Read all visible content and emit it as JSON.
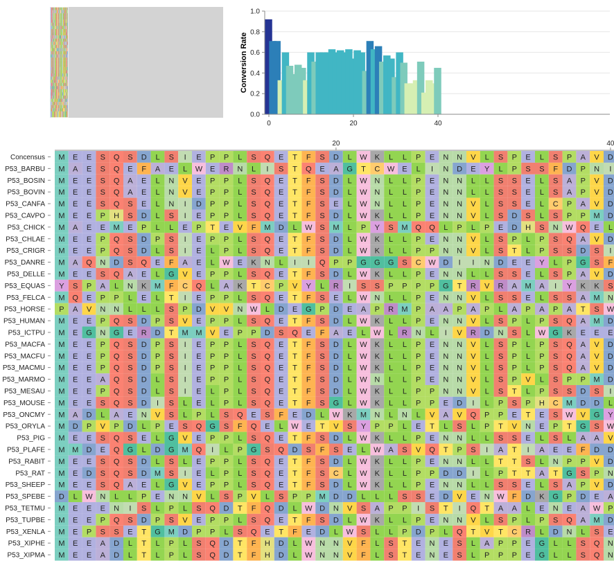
{
  "colors": {
    "M": "#7ccfc0",
    "A": "#bcb0d8",
    "E": "#b1b1e0",
    "D": "#86a5cf",
    "Q": "#fb8272",
    "S": "#f18070",
    "L": "#93d551",
    "P": "#b3dd63",
    "V": "#fed649",
    "I": "#c2dcb2",
    "F": "#feb451",
    "T": "#ffe565",
    "W": "#f7bfdd",
    "K": "#a8a8a8",
    "N": "#b8dba8",
    "G": "#50bf9f",
    "R": "#bf8cc8",
    "C": "#ffcc6d",
    "Y": "#dba0e0",
    "H": "#e3e080",
    "bar_scale": [
      "#d6efb3",
      "#7ecbbb",
      "#41b6c4",
      "#2c7fb8",
      "#253494"
    ],
    "overview_bg": "#d3d3d3"
  },
  "chart_data": {
    "type": "bar",
    "ylabel": "Conversion Rate",
    "xlabel": "",
    "ylim": [
      0,
      1.0
    ],
    "yticks": [
      "0.0",
      "0.2",
      "0.4",
      "0.6",
      "0.8",
      "1.0"
    ],
    "xticks": [
      "0",
      "20",
      "40"
    ],
    "x": [
      0,
      1,
      2,
      3,
      4,
      5,
      6,
      7,
      8,
      9,
      10,
      11,
      12,
      13,
      14,
      15,
      16,
      17,
      18,
      19,
      20,
      21,
      22,
      23,
      24,
      25,
      26,
      27,
      28,
      29,
      30,
      31,
      32,
      33,
      34,
      35,
      36,
      37,
      38,
      39,
      40
    ],
    "values": [
      0.92,
      0.71,
      0.71,
      0.33,
      0.6,
      0.47,
      0.39,
      0.48,
      0.45,
      0.33,
      0.6,
      0.51,
      0.6,
      0.6,
      0.6,
      0.63,
      0.6,
      0.62,
      0.6,
      0.63,
      0.54,
      0.62,
      0.6,
      0.42,
      0.71,
      0.63,
      0.66,
      0.51,
      0.57,
      0.54,
      0.36,
      0.6,
      0.5,
      0.3,
      0.3,
      0.33,
      0.51,
      0.21,
      0.33,
      0.3,
      0.45
    ]
  },
  "alignment": {
    "ruler_labels": [
      {
        "pos": 20,
        "text": "20"
      },
      {
        "pos": 40,
        "text": "40"
      }
    ],
    "sequences": [
      {
        "name": "Concensus",
        "seq": "MEESQSDLSIEPPLSQETFSDLWKLLPENNVLSPELSPAVD"
      },
      {
        "name": "P53_BARBU",
        "seq": "MAESQEFAELWERNLISTQEAGTCWELINDEYLPSSFDPNI"
      },
      {
        "name": "P53_BOSIN",
        "seq": "MEESQAELNVEPPLSQETFSDLWNLLPENNLLSSELSAPVD"
      },
      {
        "name": "P53_BOVIN",
        "seq": "MEESQAELNVEPPLSQETFSDLWNLLPENNLLSSELSAPVD"
      },
      {
        "name": "P53_CANFA",
        "seq": "MEESQSELNIDPPLSQETFSELWNLLPENNVLSSELCPAVD"
      },
      {
        "name": "P53_CAVPO",
        "seq": "MEEPHSDLSIEPPLSQETFSDLWKLLPENNVLSDSLSPPMD"
      },
      {
        "name": "P53_CHICK",
        "seq": "MAEEMEPLLEPTEVFMDLWSMLPYSMQQLPLPEDHSNWQEL"
      },
      {
        "name": "P53_CHLAE",
        "seq": "MEEPQSDPSIEPPLSQETFSDLWKLLPENNVLSPLPSQAVD"
      },
      {
        "name": "P53_CRIGR",
        "seq": "MEEPQSDLSIELPLSQETFSDLWKLLPPNNVLSTLPSSDSI"
      },
      {
        "name": "P53_DANRE",
        "seq": "MAQNDSQEFAELWEKNLIIQPPGGGSCWDIINDEEYLPGSF"
      },
      {
        "name": "P53_DELLE",
        "seq": "MEESQAELGVEPPLSQETFSDLWKLLPENNLLSSELSPAVD"
      },
      {
        "name": "P53_EQUAS",
        "seq": "YSPALNKMFCQLAKTCPVYLRISSPPPPGTRVRAMAIYKKS"
      },
      {
        "name": "P53_FELCA",
        "seq": "MQEPPLELTIEPPLSQETFSELWNLLPENNVLSSELSSAMN"
      },
      {
        "name": "P53_HORSE",
        "seq": "PAVNNLLLSPDVVNWLDEGPDEAPRMPAAPAPLAPAPATSW"
      },
      {
        "name": "P53_HUMAN",
        "seq": "MEEPQSDPSVEPPLSQETFSDLWKLLPENNVLSPLPSQAMD"
      },
      {
        "name": "P53_ICTPU",
        "seq": "MEGNGERDTMMVEPPDSQEFAELWLRNLIVRDNSLWGKEEE"
      },
      {
        "name": "P53_MACFA",
        "seq": "MEEPQSDPSIEPPLSQETFSDLWKLLPENNVLSPLPSQAVD"
      },
      {
        "name": "P53_MACFU",
        "seq": "MEEPQSDPSIEPPLSQETFSDLWKLLPENNVLSPLPSQAVD"
      },
      {
        "name": "P53_MACMU",
        "seq": "MEEPQSDPSIEPPLSQETFSDLWKLLPENNVLSPLPSQAVD"
      },
      {
        "name": "P53_MARMO",
        "seq": "MEEAQSDLSIEPPLSQETFSDLWNLLPENNVLSPVLSPPMD"
      },
      {
        "name": "P53_MESAU",
        "seq": "MEEPQSDLSIELPLSQETFSDLWKLLPPNNVLSTLPSSDSI"
      },
      {
        "name": "P53_MOUSE",
        "seq": "MEESQSDISLELPLSQETFSGLWKLLPPEDILPSPHCMDDL"
      },
      {
        "name": "P53_ONCMY",
        "seq": "MADLAENVSLPLSQESFEDLWKMNLNLVAVQPPETESWVGY"
      },
      {
        "name": "P53_ORYLA",
        "seq": "MDPVPDLPESQGSFQELWETVSYPPLETLSLPTVNEPTGSW"
      },
      {
        "name": "P53_PIG",
        "seq": "MEESQSELGVEPPLSQETFSDLWKLLPENNLLSSELSLAAV"
      },
      {
        "name": "P53_PLAFE",
        "seq": "MMDEQGLDGMQILPGSQDSFSELWASVQTPSIATIAEEFDD"
      },
      {
        "name": "P53_RABIT",
        "seq": "MEESQSDLSLEPPLSQETFSDLWKLLPENNLLTTSLNPPVD"
      },
      {
        "name": "P53_RAT",
        "seq": "MEDSQSDMSIELPLSQETFSCLWKLLPPDDILPTTATGSPN"
      },
      {
        "name": "P53_SHEEP",
        "seq": "MEESQAELGVEPPLSQETFSDLWKLLPENNLLSSELSAPVD"
      },
      {
        "name": "P53_SPEBE",
        "seq": "DLWNLLPENNVLSPVLSPPMDDLLLSSEDVENWFDKGPDEA"
      },
      {
        "name": "P53_TETMU",
        "seq": "MEEENISLPLSQDTFQDLWDNVSAPPISTIQTAALENEAWP"
      },
      {
        "name": "P53_TUPBE",
        "seq": "MEEPQSDPSVEPPLSQETFSDLWKLLPENNVLSPLPSQAMD"
      },
      {
        "name": "P53_XENLA",
        "seq": "MEPSSETGMDPPLSQETFEDLWSLLPDPLQTVTCRLDNLSE"
      },
      {
        "name": "P53_XIPHE",
        "seq": "MEEADLTLPLSQDTFHDLWNNVFLSTENESLAPPEGLLSQN"
      },
      {
        "name": "P53_XIPMA",
        "seq": "MEEADLTLPLSQDTFHDLWNNVFLSTENESLPPPEGLLSQN"
      }
    ]
  }
}
